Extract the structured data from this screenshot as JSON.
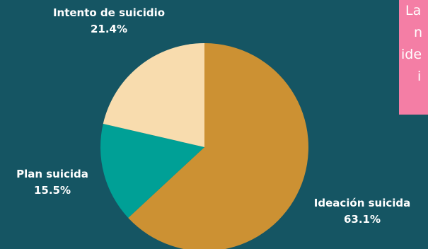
{
  "chart_data": {
    "type": "pie",
    "title": "",
    "slices": [
      {
        "name": "Ideación suicida",
        "value": 63.1,
        "label": "63.1%",
        "color": "#cc9133"
      },
      {
        "name": "Plan suicida",
        "value": 15.5,
        "label": "15.5%",
        "color": "#00a096"
      },
      {
        "name": "Intento de suicidio",
        "value": 21.4,
        "label": "21.4%",
        "color": "#f8dcae"
      }
    ],
    "start": "12 o'clock",
    "direction": "clockwise",
    "legend": "none"
  },
  "colors": {
    "background": "#155563",
    "callout_background": "#f47ea5",
    "label_text": "#ffffff"
  },
  "callout": {
    "lines": [
      "La",
      "n",
      "ide",
      "i"
    ]
  }
}
